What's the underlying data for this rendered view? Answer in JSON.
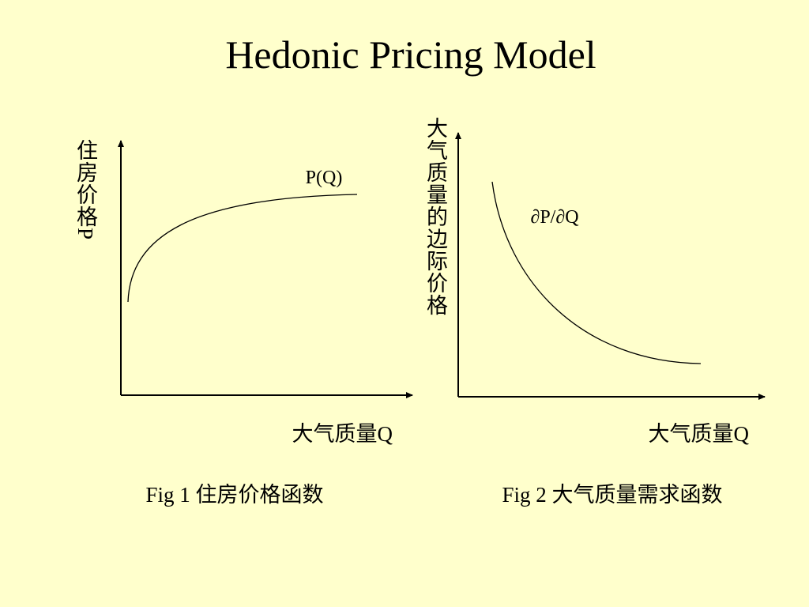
{
  "title": "Hedonic Pricing Model",
  "figures": [
    {
      "y_label": "住房价格P",
      "x_label": "大气质量Q",
      "curve_label": "P(Q)",
      "caption": "Fig 1 住房价格函数"
    },
    {
      "y_label": "大气质量的边际价格",
      "x_label": "大气质量Q",
      "curve_label": "∂P/∂Q",
      "caption": "Fig 2 大气质量需求函数"
    }
  ]
}
